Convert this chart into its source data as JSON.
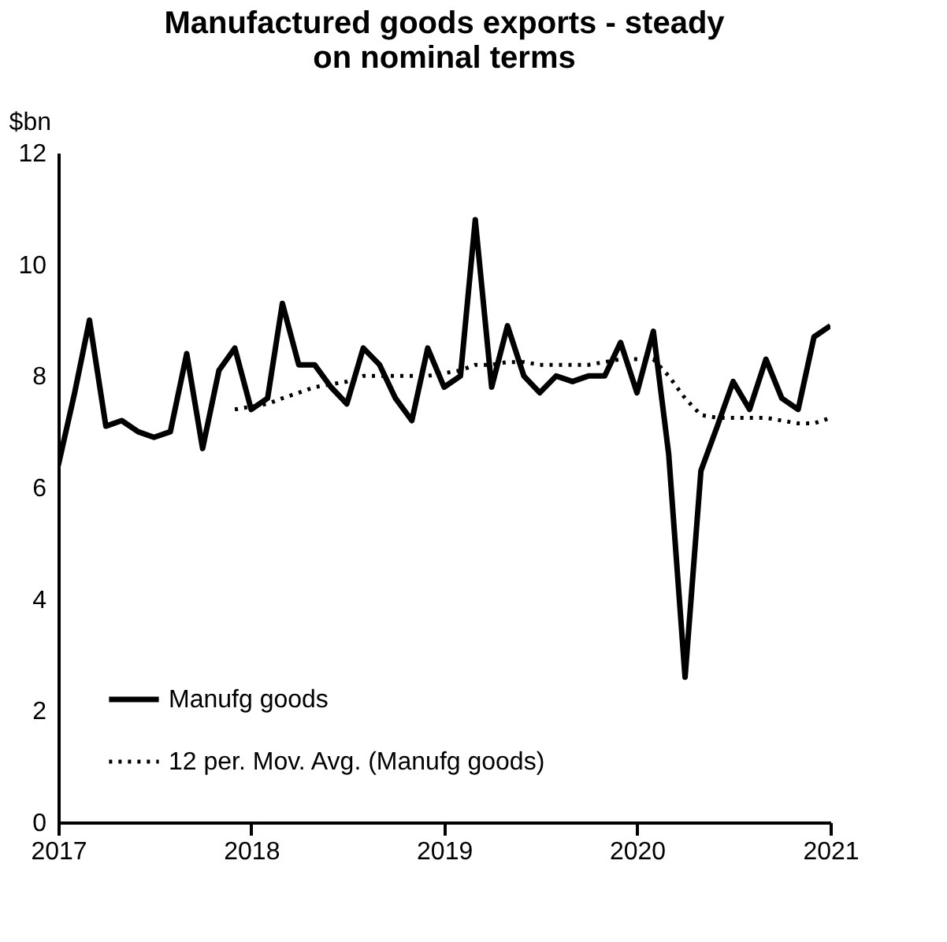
{
  "chart_data": {
    "type": "line",
    "title": [
      "Manufactured goods exports - steady",
      "on nominal terms"
    ],
    "ylabel": "$bn",
    "x": [
      "2017-01",
      "2017-02",
      "2017-03",
      "2017-04",
      "2017-05",
      "2017-06",
      "2017-07",
      "2017-08",
      "2017-09",
      "2017-10",
      "2017-11",
      "2017-12",
      "2018-01",
      "2018-02",
      "2018-03",
      "2018-04",
      "2018-05",
      "2018-06",
      "2018-07",
      "2018-08",
      "2018-09",
      "2018-10",
      "2018-11",
      "2018-12",
      "2019-01",
      "2019-02",
      "2019-03",
      "2019-04",
      "2019-05",
      "2019-06",
      "2019-07",
      "2019-08",
      "2019-09",
      "2019-10",
      "2019-11",
      "2019-12",
      "2020-01",
      "2020-02",
      "2020-03",
      "2020-04",
      "2020-05",
      "2020-06",
      "2020-07",
      "2020-08",
      "2020-09",
      "2020-10",
      "2020-11",
      "2020-12",
      "2021-01"
    ],
    "series": [
      {
        "name": "Manufg goods",
        "color": "#000000",
        "line_style": "solid",
        "values": [
          6.4,
          7.7,
          9.0,
          7.1,
          7.2,
          7.0,
          6.9,
          7.0,
          8.4,
          6.7,
          8.1,
          8.5,
          7.4,
          7.6,
          9.3,
          8.2,
          8.2,
          7.8,
          7.5,
          8.5,
          8.2,
          7.6,
          7.2,
          8.5,
          7.8,
          8.0,
          10.8,
          7.8,
          8.9,
          8.0,
          7.7,
          8.0,
          7.9,
          8.0,
          8.0,
          8.6,
          7.7,
          8.8,
          6.6,
          2.6,
          6.3,
          7.1,
          7.9,
          7.4,
          8.3,
          7.6,
          7.4,
          8.7,
          8.9
        ]
      },
      {
        "name": "12 per. Mov. Avg. (Manufg goods)",
        "color": "#000000",
        "line_style": "dotted",
        "values": [
          null,
          null,
          null,
          null,
          null,
          null,
          null,
          null,
          null,
          null,
          null,
          7.4,
          7.45,
          7.5,
          7.6,
          7.7,
          7.8,
          7.85,
          7.9,
          8.0,
          8.0,
          8.0,
          8.0,
          8.0,
          8.05,
          8.1,
          8.2,
          8.2,
          8.25,
          8.25,
          8.2,
          8.2,
          8.2,
          8.2,
          8.25,
          8.3,
          8.3,
          8.3,
          8.0,
          7.6,
          7.3,
          7.25,
          7.25,
          7.25,
          7.25,
          7.2,
          7.15,
          7.15,
          7.25
        ]
      }
    ],
    "xlim": [
      "2017-01",
      "2021-01"
    ],
    "xticks": [
      "2017",
      "2018",
      "2019",
      "2020",
      "2021"
    ],
    "ylim": [
      0,
      12
    ],
    "yticks": [
      0,
      2,
      4,
      6,
      8,
      10,
      12
    ],
    "grid": false,
    "legend": "bottom left"
  }
}
